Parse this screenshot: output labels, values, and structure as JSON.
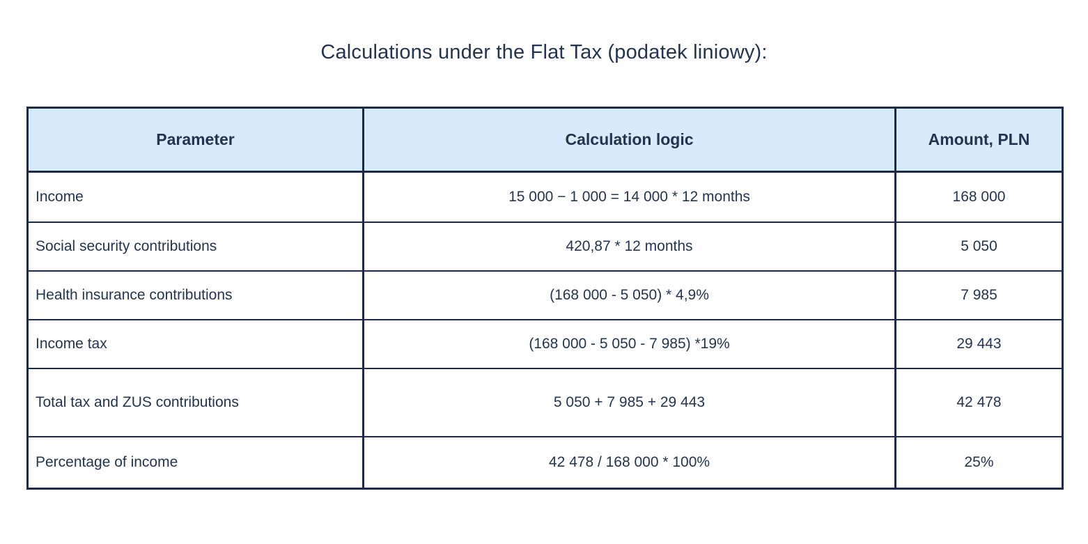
{
  "page": {
    "title": "Calculations under the Flat Tax (podatek liniowy):"
  },
  "table": {
    "columns": [
      "Parameter",
      "Calculation logic",
      "Amount, PLN"
    ],
    "rows": [
      {
        "parameter": "Income",
        "logic": "15 000 − 1 000 = 14 000 * 12 months",
        "amount": "168 000"
      },
      {
        "parameter": "Social security contributions",
        "logic": "420,87 * 12 months",
        "amount": "5 050"
      },
      {
        "parameter": "Health insurance contributions",
        "logic": "(168 000 - 5 050) * 4,9%",
        "amount": "7 985"
      },
      {
        "parameter": "Income tax",
        "logic": "(168 000 - 5 050 - 7 985) *19%",
        "amount": "29 443"
      },
      {
        "parameter": "Total tax and ZUS contributions",
        "logic": "5 050 + 7 985 + 29 443",
        "amount": "42 478"
      },
      {
        "parameter": "Percentage of income",
        "logic": "42 478 / 168 000 * 100%",
        "amount": "25%"
      }
    ]
  },
  "colors": {
    "border": "#1d2b48",
    "header_bg": "#d6ebfc",
    "text": "#243450",
    "page_bg": "#ffffff"
  }
}
